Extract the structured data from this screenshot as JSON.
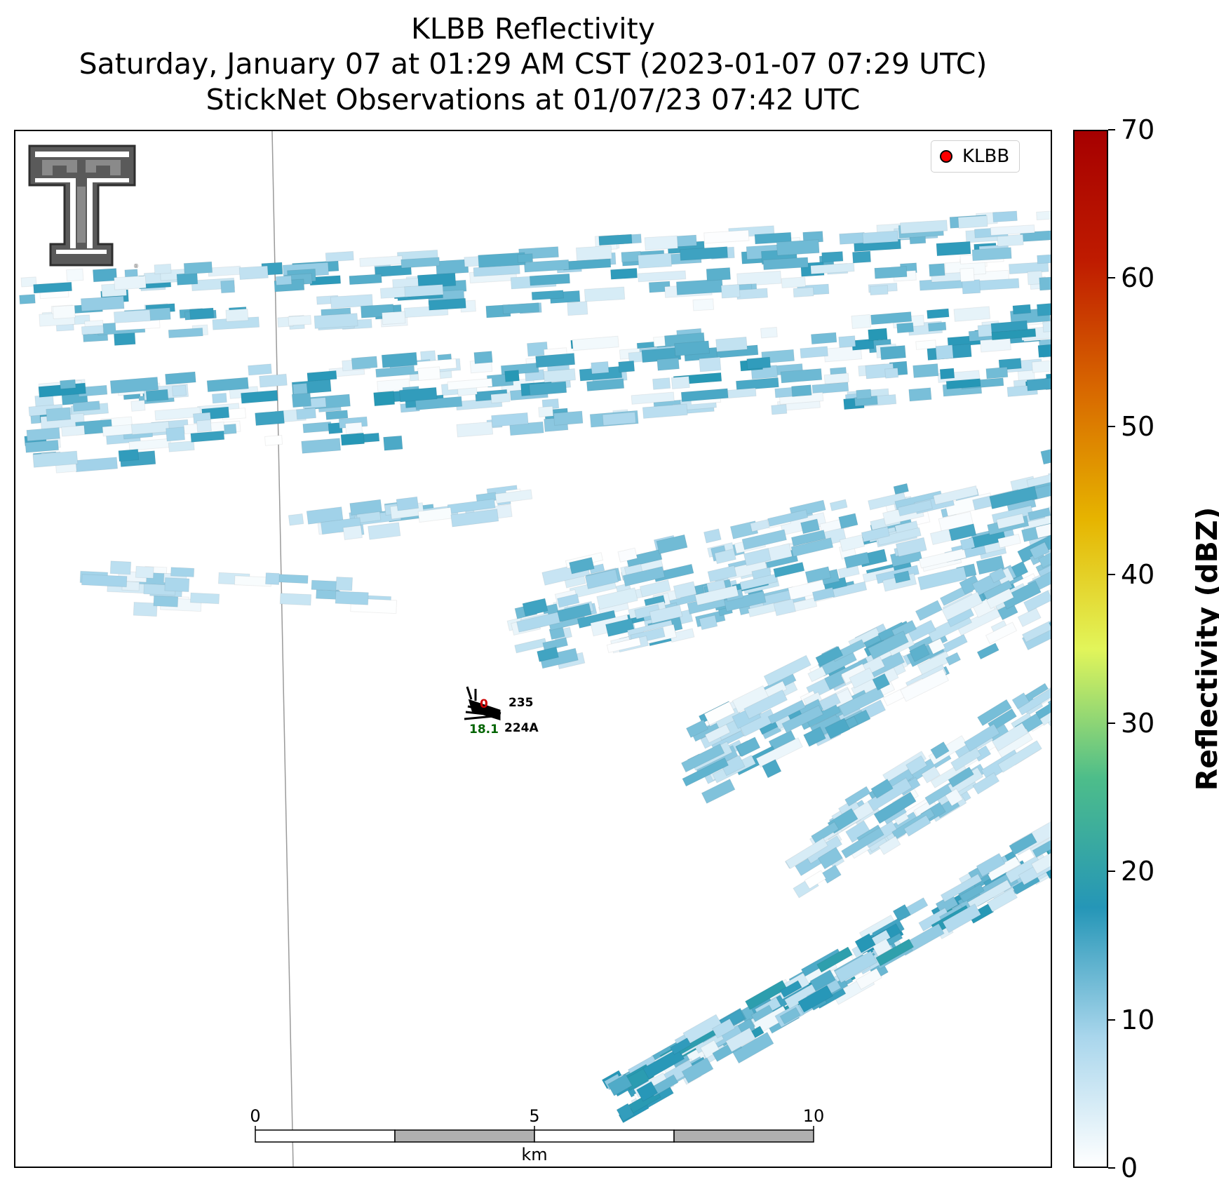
{
  "title": {
    "line1": "KLBB Reflectivity",
    "line2": "Saturday, January 07 at 01:29 AM CST (2023-01-07 07:29 UTC)",
    "line3": "StickNet Observations at 01/07/23 07:42 UTC"
  },
  "legend": {
    "label": "KLBB",
    "marker_color": "#ff0000"
  },
  "scalebar": {
    "ticks": [
      "0",
      "5",
      "10"
    ],
    "unit": "km"
  },
  "colorbar": {
    "label": "Reflectivity (dBZ)",
    "ticks": [
      "0",
      "10",
      "20",
      "30",
      "40",
      "50",
      "60",
      "70"
    ],
    "min": 0,
    "max": 70,
    "stops": [
      "#ffffff",
      "#a9d6ec",
      "#2596b7",
      "#4dbd8a",
      "#e2f55a",
      "#e6b400",
      "#d86800",
      "#bf1b00",
      "#a60000"
    ]
  },
  "stations": [
    {
      "id": "235",
      "temp": "0",
      "temp_color": "#cc0000"
    },
    {
      "id": "224A",
      "dewpoint": "18.1",
      "dewpoint_color": "#006400"
    }
  ],
  "logo": {
    "name": "Texas Tech Double T"
  }
}
